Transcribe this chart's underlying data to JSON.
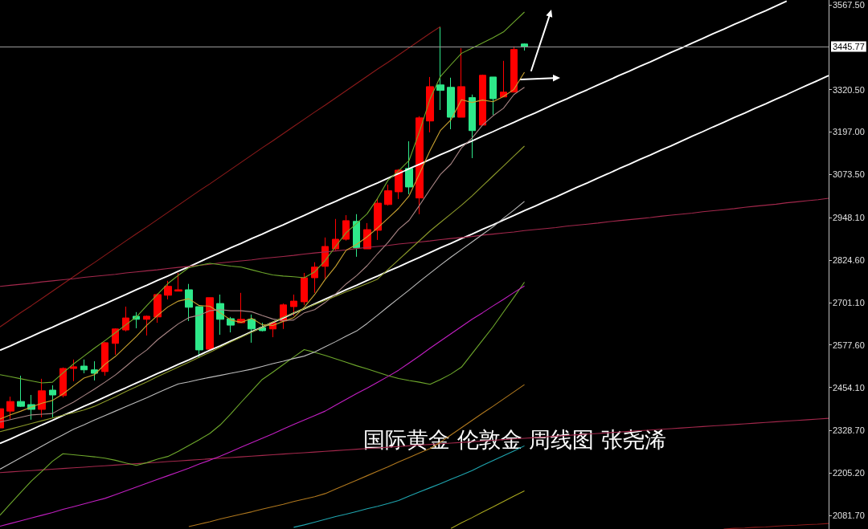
{
  "chart_data": {
    "type": "candlestick",
    "title": "国际黄金 伦敦金 周线图 张尧浠",
    "categories": [
      null,
      null,
      null,
      null,
      null,
      null,
      null,
      null,
      null,
      null,
      null,
      null,
      null,
      null,
      null,
      null,
      null,
      null,
      null,
      null,
      null,
      null,
      null,
      null,
      null,
      null,
      null,
      null,
      null,
      null,
      null,
      null,
      null,
      null,
      null,
      null,
      null,
      null,
      null,
      null,
      null,
      null,
      null,
      null,
      null,
      null,
      null,
      null,
      null,
      null,
      null,
      null,
      null,
      null,
      null,
      null,
      null,
      null,
      null,
      null,
      null,
      null,
      null,
      null,
      null,
      null,
      null,
      null,
      null,
      null,
      null,
      null,
      null,
      null,
      null,
      null,
      null,
      null,
      null,
      null
    ],
    "ohlc": [
      [
        2336,
        2399,
        2327,
        2392
      ],
      [
        2385,
        2427,
        2362,
        2413
      ],
      [
        2413,
        2488,
        2397,
        2399
      ],
      [
        2404,
        2432,
        2360,
        2390
      ],
      [
        2390,
        2479,
        2367,
        2444
      ],
      [
        2446,
        2460,
        2367,
        2432
      ],
      [
        2430,
        2512,
        2425,
        2509
      ],
      [
        2509,
        2535,
        2472,
        2514
      ],
      [
        2516,
        2535,
        2495,
        2505
      ],
      [
        2505,
        2530,
        2474,
        2495
      ],
      [
        2500,
        2586,
        2488,
        2584
      ],
      [
        2582,
        2626,
        2549,
        2624
      ],
      [
        2621,
        2689,
        2617,
        2656
      ],
      [
        2661,
        2673,
        2626,
        2652
      ],
      [
        2652,
        2663,
        2605,
        2661
      ],
      [
        2659,
        2727,
        2642,
        2724
      ],
      [
        2722,
        2764,
        2710,
        2748
      ],
      [
        2734,
        2787,
        2734,
        2738
      ],
      [
        2738,
        2755,
        2647,
        2687
      ],
      [
        2689,
        2689,
        2540,
        2563
      ],
      [
        2565,
        2715,
        2561,
        2715
      ],
      [
        2698,
        2724,
        2607,
        2652
      ],
      [
        2654,
        2659,
        2614,
        2635
      ],
      [
        2642,
        2729,
        2642,
        2652
      ],
      [
        2652,
        2666,
        2584,
        2624
      ],
      [
        2628,
        2642,
        2617,
        2619
      ],
      [
        2624,
        2642,
        2600,
        2642
      ],
      [
        2647,
        2698,
        2624,
        2694
      ],
      [
        2689,
        2724,
        2663,
        2705
      ],
      [
        2703,
        2787,
        2694,
        2773
      ],
      [
        2773,
        2818,
        2729,
        2804
      ],
      [
        2806,
        2890,
        2771,
        2864
      ],
      [
        2857,
        2944,
        2853,
        2885
      ],
      [
        2885,
        2955,
        2881,
        2939
      ],
      [
        2937,
        2958,
        2834,
        2860
      ],
      [
        2857,
        2932,
        2857,
        2913
      ],
      [
        2911,
        3005,
        2883,
        2990
      ],
      [
        2986,
        3044,
        2983,
        3026
      ],
      [
        3023,
        3089,
        3002,
        3086
      ],
      [
        3091,
        3170,
        3016,
        3037
      ],
      [
        3005,
        3243,
        2958,
        3238
      ],
      [
        3229,
        3357,
        3196,
        3329
      ],
      [
        3334,
        3502,
        3261,
        3318
      ],
      [
        3327,
        3355,
        3205,
        3240
      ],
      [
        3240,
        3441,
        3240,
        3329
      ],
      [
        3297,
        3306,
        3121,
        3201
      ],
      [
        3217,
        3364,
        3217,
        3362
      ],
      [
        3357,
        3357,
        3247,
        3294
      ],
      [
        3299,
        3404,
        3299,
        3313
      ],
      [
        3313,
        3446,
        3313,
        3437
      ],
      [
        3453,
        3455,
        3434,
        3446
      ],
      null,
      null,
      null,
      null,
      null,
      null,
      null,
      null,
      null,
      null,
      null,
      null,
      null,
      null,
      null,
      null,
      null,
      null,
      null,
      null,
      null,
      null,
      null,
      null,
      null,
      null,
      null,
      null,
      null
    ],
    "colors": [
      "#ff0000",
      "#ff0000",
      "#2ee88a",
      "#2ee88a",
      "#ff0000",
      "#2ee88a",
      "#ff0000",
      "#ff0000",
      "#2ee88a",
      "#2ee88a",
      "#ff0000",
      "#ff0000",
      "#ff0000",
      "#2ee88a",
      "#ff0000",
      "#ff0000",
      "#ff0000",
      "#ff0000",
      "#2ee88a",
      "#2ee88a",
      "#ff0000",
      "#2ee88a",
      "#2ee88a",
      "#ff0000",
      "#2ee88a",
      "#2ee88a",
      "#ff0000",
      "#ff0000",
      "#ff0000",
      "#ff0000",
      "#ff0000",
      "#ff0000",
      "#ff0000",
      "#ff0000",
      "#2ee88a",
      "#ff0000",
      "#ff0000",
      "#ff0000",
      "#ff0000",
      "#2ee88a",
      "#ff0000",
      "#ff0000",
      "#2ee88a",
      "#2ee88a",
      "#ff0000",
      "#2ee88a",
      "#ff0000",
      "#2ee88a",
      "#ff0000",
      "#ff0000",
      "#2ee88a",
      null,
      null,
      null,
      null,
      null,
      null,
      null,
      null,
      null,
      null,
      null,
      null,
      null,
      null,
      null,
      null,
      null,
      null,
      null,
      null,
      null,
      null,
      null,
      null,
      null,
      null,
      null,
      null,
      null
    ],
    "series": [
      {
        "type": "line",
        "color": "#ffffff",
        "values": [
          2562,
          2575,
          2589,
          2602,
          2616,
          2629,
          2643,
          2656,
          2670,
          2684,
          2697,
          2711,
          2724,
          2738,
          2751,
          2765,
          2778,
          2792,
          2805,
          2819,
          2833,
          2846,
          2860,
          2873,
          2887,
          2900,
          2914,
          2927,
          2941,
          2954,
          2968,
          2982,
          2995,
          3009,
          3022,
          3036,
          3049,
          3063,
          3076,
          3090,
          3103,
          3117,
          3131,
          3144,
          3158,
          3171,
          3185,
          3198,
          3212,
          3225,
          3239,
          3252,
          3266,
          3280,
          3293,
          3307,
          3320,
          3334,
          3347,
          3361,
          3374,
          3388,
          3401,
          3415,
          3429,
          3442,
          3456,
          3469,
          3483,
          3496,
          3510,
          3523,
          3537,
          3550,
          3564,
          3578,
          null,
          null,
          null,
          null
        ]
      },
      {
        "type": "line",
        "color": "#ffffff",
        "values": [
          2291,
          2304,
          2318,
          2331,
          2345,
          2358,
          2372,
          2385,
          2399,
          2412,
          2426,
          2440,
          2453,
          2467,
          2480,
          2494,
          2507,
          2521,
          2534,
          2548,
          2562,
          2575,
          2589,
          2602,
          2616,
          2629,
          2643,
          2656,
          2670,
          2683,
          2697,
          2711,
          2724,
          2738,
          2751,
          2765,
          2778,
          2792,
          2805,
          2819,
          2832,
          2846,
          2860,
          2873,
          2887,
          2900,
          2914,
          2927,
          2941,
          2954,
          2968,
          2981,
          2995,
          3008,
          3022,
          3036,
          3049,
          3063,
          3076,
          3090,
          3103,
          3117,
          3130,
          3144,
          3157,
          3171,
          3185,
          3198,
          3212,
          3225,
          3239,
          3252,
          3266,
          3279,
          3293,
          3306,
          3320,
          3334,
          3347,
          3361
        ]
      },
      {
        "type": "line",
        "color": "#8b1a1a",
        "values": [
          2630,
          2651,
          2672,
          2692,
          2713,
          2734,
          2755,
          2776,
          2797,
          2817,
          2838,
          2859,
          2880,
          2901,
          2921,
          2942,
          2963,
          2984,
          3005,
          3026,
          3046,
          3067,
          3088,
          3109,
          3130,
          3151,
          3171,
          3192,
          3213,
          3234,
          3255,
          3275,
          3296,
          3317,
          3338,
          3359,
          3380,
          3400,
          3421,
          3442,
          3463,
          3484,
          3504,
          null,
          null,
          null,
          null,
          null,
          null,
          null,
          null,
          null,
          null,
          null,
          null,
          null,
          null,
          null,
          null,
          null,
          null,
          null,
          null,
          null,
          null,
          null,
          null,
          null,
          null,
          null,
          null,
          null,
          null,
          null,
          null,
          null,
          null,
          null,
          null,
          null
        ]
      },
      {
        "type": "line",
        "color": "#a3284c",
        "values": [
          2748,
          2751,
          2754,
          2757,
          2761,
          2764,
          2767,
          2770,
          2774,
          2777,
          2780,
          2783,
          2787,
          2790,
          2793,
          2796,
          2800,
          2803,
          2806,
          2809,
          2812,
          2816,
          2819,
          2822,
          2825,
          2829,
          2832,
          2835,
          2838,
          2842,
          2845,
          2848,
          2851,
          2854,
          2858,
          2861,
          2864,
          2867,
          2871,
          2874,
          2877,
          2880,
          2884,
          2887,
          2890,
          2893,
          2897,
          2900,
          2903,
          2906,
          2910,
          2913,
          2916,
          2919,
          2923,
          2926,
          2929,
          2932,
          2936,
          2939,
          2942,
          2945,
          2948,
          2952,
          2955,
          2958,
          2961,
          2965,
          2968,
          2971,
          2974,
          2978,
          2981,
          2984,
          2987,
          2991,
          2994,
          2997,
          3000,
          3004
        ]
      },
      {
        "type": "line",
        "color": "#a3284c",
        "values": [
          2206,
          2208,
          2210,
          2212,
          2214,
          2216,
          2218,
          2220,
          2222,
          2224,
          2226,
          2228,
          2230,
          2232,
          2234,
          2236,
          2238,
          2240,
          2242,
          2244,
          2246,
          2248,
          2250,
          2252,
          2254,
          2256,
          2258,
          2260,
          2262,
          2264,
          2266,
          2268,
          2270,
          2272,
          2274,
          2276,
          2278,
          2280,
          2282,
          2284,
          2286,
          2288,
          2290,
          2292,
          2294,
          2296,
          2298,
          2300,
          2302,
          2304,
          2306,
          2308,
          2310,
          2312,
          2314,
          2316,
          2318,
          2320,
          2322,
          2324,
          2326,
          2328,
          2330,
          2332,
          2334,
          2336,
          2338,
          2340,
          2342,
          2344,
          2346,
          2348,
          2350,
          2352,
          2354,
          2356,
          2358,
          2360,
          2362,
          2364
        ]
      },
      {
        "type": "line",
        "color": "#8b1a1a",
        "values": [
          null,
          null,
          null,
          null,
          null,
          null,
          null,
          null,
          null,
          null,
          null,
          null,
          null,
          null,
          null,
          null,
          null,
          null,
          null,
          null,
          null,
          null,
          null,
          null,
          null,
          null,
          null,
          null,
          null,
          null,
          null,
          null,
          null,
          null,
          null,
          null,
          null,
          null,
          null,
          null,
          null,
          null,
          null,
          null,
          null,
          null,
          null,
          null,
          null,
          null,
          null,
          null,
          null,
          null,
          null,
          null,
          null,
          null,
          null,
          null,
          null,
          null,
          null,
          null,
          null,
          null,
          null,
          null,
          null,
          2042,
          2044,
          2045,
          2047,
          2048,
          2050,
          2052,
          2053,
          2055,
          2056,
          2058
        ]
      },
      {
        "type": "line",
        "color": "#6ea82c",
        "values": [
          2491,
          2485,
          2479,
          2473,
          2467,
          2469,
          2496,
          2522,
          2545,
          2568,
          2590,
          2613,
          2636,
          2659,
          2692,
          2724,
          2756,
          2780,
          2802,
          2809,
          2815,
          2811,
          2807,
          2804,
          2796,
          2788,
          2781,
          2778,
          2776,
          2773,
          2790,
          2823,
          2864,
          2904,
          2931,
          2959,
          3004,
          3057,
          3084,
          3114,
          3199,
          3293,
          3359,
          3393,
          3426,
          3441,
          3456,
          3471,
          3488,
          3517,
          3546,
          null,
          null,
          null,
          null,
          null,
          null,
          null,
          null,
          null,
          null,
          null,
          null,
          null,
          null,
          null,
          null,
          null,
          null,
          null,
          null,
          null,
          null,
          null,
          null,
          null,
          null,
          null,
          null,
          null
        ]
      },
      {
        "type": "line",
        "color": "#6ea82c",
        "values": [
          2082,
          2116,
          2149,
          2182,
          2210,
          2239,
          2261,
          2258,
          2255,
          2252,
          2248,
          2242,
          2234,
          2227,
          2235,
          2245,
          2253,
          2268,
          2285,
          2302,
          2320,
          2345,
          2377,
          2411,
          2444,
          2477,
          2498,
          2520,
          2542,
          2564,
          2556,
          2547,
          2537,
          2527,
          2517,
          2508,
          2498,
          2488,
          2480,
          2474,
          2469,
          2463,
          2477,
          2493,
          2513,
          2552,
          2591,
          2630,
          2673,
          2716,
          2760,
          null,
          null,
          null,
          null,
          null,
          null,
          null,
          null,
          null,
          null,
          null,
          null,
          null,
          null,
          null,
          null,
          null,
          null,
          null,
          null,
          null,
          null,
          null,
          null,
          null,
          null,
          null,
          null,
          null
        ]
      },
      {
        "type": "line",
        "color": "#c9a230",
        "values": [
          2362,
          2374,
          2385,
          2397,
          2408,
          2416,
          2435,
          2458,
          2481,
          2491,
          2521,
          2544,
          2573,
          2602,
          2635,
          2663,
          2688,
          2705,
          2712,
          2692,
          2690,
          2671,
          2650,
          2643,
          2655,
          2636,
          2634,
          2646,
          2657,
          2687,
          2724,
          2768,
          2806,
          2853,
          2870,
          2892,
          2918,
          2946,
          2975,
          3011,
          3076,
          3143,
          3202,
          3233,
          3291,
          3283,
          3290,
          3285,
          3300,
          3321,
          3371,
          null,
          null,
          null,
          null,
          null,
          null,
          null,
          null,
          null,
          null,
          null,
          null,
          null,
          null,
          null,
          null,
          null,
          null,
          null,
          null,
          null,
          null,
          null,
          null,
          null,
          null,
          null,
          null,
          null
        ]
      },
      {
        "type": "line",
        "color": "#a98585",
        "values": [
          2353,
          2360,
          2367,
          2374,
          2376,
          2378,
          2395,
          2411,
          2430,
          2449,
          2469,
          2490,
          2515,
          2541,
          2563,
          2592,
          2616,
          2639,
          2657,
          2664,
          2677,
          2680,
          2677,
          2677,
          2674,
          2663,
          2653,
          2648,
          2650,
          2671,
          2680,
          2701,
          2726,
          2755,
          2779,
          2808,
          2843,
          2876,
          2914,
          2940,
          2984,
          3030,
          3074,
          3104,
          3151,
          3179,
          3217,
          3244,
          3266,
          3306,
          3327,
          null,
          null,
          null,
          null,
          null,
          null,
          null,
          null,
          null,
          null,
          null,
          null,
          null,
          null,
          null,
          null,
          null,
          null,
          null,
          null,
          null,
          null,
          null,
          null,
          null,
          null,
          null,
          null,
          null
        ]
      },
      {
        "type": "line",
        "color": "#bdbdbd",
        "values": [
          2216,
          2233,
          2250,
          2266,
          2283,
          2300,
          2316,
          2332,
          2345,
          2359,
          2372,
          2385,
          2398,
          2411,
          2424,
          2438,
          2451,
          2464,
          2470,
          2477,
          2483,
          2489,
          2495,
          2501,
          2507,
          2515,
          2523,
          2530,
          2538,
          2545,
          2557,
          2572,
          2587,
          2603,
          2618,
          2640,
          2664,
          2689,
          2713,
          2737,
          2762,
          2786,
          2810,
          2833,
          2855,
          2877,
          2899,
          2921,
          2946,
          2970,
          2995,
          null,
          null,
          null,
          null,
          null,
          null,
          null,
          null,
          null,
          null,
          null,
          null,
          null,
          null,
          null,
          null,
          null,
          null,
          null,
          null,
          null,
          null,
          null,
          null,
          null,
          null,
          null,
          null,
          null
        ]
      },
      {
        "type": "line",
        "color": "#8c9a2a",
        "values": [
          2325,
          2333,
          2341,
          2349,
          2357,
          2365,
          2373,
          2380,
          2388,
          2399,
          2413,
          2427,
          2442,
          2456,
          2470,
          2485,
          2499,
          2513,
          2527,
          2542,
          2556,
          2571,
          2586,
          2600,
          2615,
          2629,
          2644,
          2658,
          2670,
          2683,
          2695,
          2707,
          2719,
          2732,
          2744,
          2756,
          2769,
          2797,
          2825,
          2853,
          2881,
          2909,
          2934,
          2959,
          2984,
          3011,
          3040,
          3069,
          3098,
          3127,
          3156,
          null,
          null,
          null,
          null,
          null,
          null,
          null,
          null,
          null,
          null,
          null,
          null,
          null,
          null,
          null,
          null,
          null,
          null,
          null,
          null,
          null,
          null,
          null,
          null,
          null,
          null,
          null,
          null,
          null
        ]
      },
      {
        "type": "line",
        "color": "#c21fc2",
        "values": [
          2050,
          2058,
          2066,
          2074,
          2082,
          2090,
          2099,
          2107,
          2115,
          2123,
          2131,
          2142,
          2153,
          2164,
          2175,
          2186,
          2197,
          2208,
          2219,
          2231,
          2242,
          2254,
          2267,
          2280,
          2293,
          2306,
          2319,
          2333,
          2346,
          2359,
          2372,
          2385,
          2402,
          2419,
          2436,
          2452,
          2469,
          2486,
          2504,
          2525,
          2546,
          2568,
          2589,
          2610,
          2631,
          2652,
          2671,
          2691,
          2710,
          2730,
          2749,
          null,
          null,
          null,
          null,
          null,
          null,
          null,
          null,
          null,
          null,
          null,
          null,
          null,
          null,
          null,
          null,
          null,
          null,
          null,
          null,
          null,
          null,
          null,
          null,
          null,
          null,
          null,
          null,
          null
        ]
      },
      {
        "type": "line",
        "color": "#b0781e",
        "values": [
          null,
          null,
          null,
          null,
          null,
          null,
          null,
          null,
          null,
          null,
          null,
          null,
          null,
          null,
          null,
          null,
          null,
          null,
          2049,
          2056,
          2063,
          2071,
          2078,
          2085,
          2092,
          2100,
          2107,
          2114,
          2122,
          2129,
          2136,
          2145,
          2158,
          2171,
          2184,
          2197,
          2210,
          2223,
          2237,
          2250,
          2263,
          2276,
          2295,
          2316,
          2337,
          2358,
          2379,
          2399,
          2420,
          2441,
          2462,
          null,
          null,
          null,
          null,
          null,
          null,
          null,
          null,
          null,
          null,
          null,
          null,
          null,
          null,
          null,
          null,
          null,
          null,
          null,
          null,
          null,
          null,
          null,
          null,
          null,
          null,
          null,
          null,
          null
        ]
      },
      {
        "type": "line",
        "color": "#1fa6b0",
        "values": [
          null,
          null,
          null,
          null,
          null,
          null,
          null,
          null,
          null,
          null,
          null,
          null,
          null,
          null,
          null,
          null,
          null,
          null,
          null,
          null,
          null,
          null,
          null,
          null,
          null,
          null,
          null,
          null,
          2047,
          2054,
          2062,
          2070,
          2078,
          2085,
          2093,
          2101,
          2108,
          2116,
          2125,
          2138,
          2150,
          2162,
          2174,
          2187,
          2199,
          2212,
          2227,
          2241,
          2255,
          2269,
          2284,
          null,
          null,
          null,
          null,
          null,
          null,
          null,
          null,
          null,
          null,
          null,
          null,
          null,
          null,
          null,
          null,
          null,
          null,
          null,
          null,
          null,
          null,
          null,
          null,
          null,
          null,
          null,
          null,
          null
        ]
      },
      {
        "type": "line",
        "color": "#a9a81e",
        "values": [
          null,
          null,
          null,
          null,
          null,
          null,
          null,
          null,
          null,
          null,
          null,
          null,
          null,
          null,
          null,
          null,
          null,
          null,
          null,
          null,
          null,
          null,
          null,
          null,
          null,
          null,
          null,
          null,
          null,
          null,
          null,
          null,
          null,
          null,
          null,
          null,
          null,
          null,
          null,
          null,
          null,
          null,
          null,
          2044,
          2060,
          2075,
          2091,
          2106,
          2122,
          2138,
          2153,
          null,
          null,
          null,
          null,
          null,
          null,
          null,
          null,
          null,
          null,
          null,
          null,
          null,
          null,
          null,
          null,
          null,
          null,
          null,
          null,
          null,
          null,
          null,
          null,
          null,
          null,
          null,
          null,
          null
        ]
      }
    ],
    "ylim": [
      2042,
      3581
    ],
    "yticks": [
      {
        "value": 3567.5,
        "label": "3567.50"
      },
      {
        "value": 3320.5,
        "label": "3320.50"
      },
      {
        "value": 3197,
        "label": "3197.00"
      },
      {
        "value": 3073.5,
        "label": "3073.50"
      },
      {
        "value": 2948.1,
        "label": "2948.10"
      },
      {
        "value": 2824.6,
        "label": "2824.60"
      },
      {
        "value": 2701.1,
        "label": "2701.10"
      },
      {
        "value": 2577.6,
        "label": "2577.60"
      },
      {
        "value": 2454.1,
        "label": "2454.10"
      },
      {
        "value": 2328.7,
        "label": "2328.70"
      },
      {
        "value": 2205.2,
        "label": "2205.20"
      },
      {
        "value": 2081.7,
        "label": "2081.70"
      }
    ],
    "ref_lines": [
      {
        "axis": "y",
        "value": 3445.77,
        "label": "3445.77",
        "color": "#9a9a9a"
      }
    ],
    "tick_labels": "y"
  }
}
